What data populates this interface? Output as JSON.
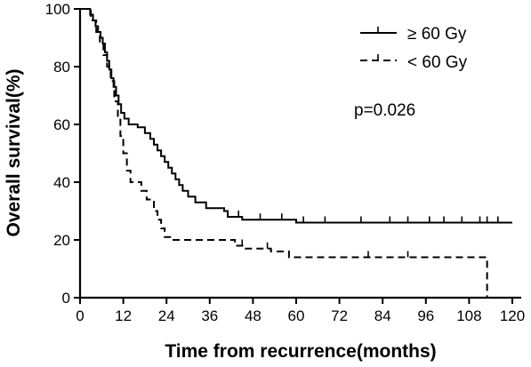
{
  "chart_data": {
    "type": "line",
    "title": "",
    "xlabel": "Time from recurrence(months)",
    "ylabel": "Overall survival(%)",
    "xlim": [
      0,
      120
    ],
    "ylim": [
      0,
      100
    ],
    "x_ticks": [
      "0",
      "12",
      "24",
      "36",
      "48",
      "60",
      "72",
      "84",
      "96",
      "108",
      "120"
    ],
    "y_ticks": [
      "0",
      "20",
      "40",
      "60",
      "80",
      "100"
    ],
    "grid": false,
    "legend_position": "top-right",
    "annotation": "p=0.026",
    "series": [
      {
        "name": "≥ 60 Gy",
        "line_style": "solid",
        "steps": [
          [
            0,
            100
          ],
          [
            2,
            100
          ],
          [
            2.8,
            98
          ],
          [
            3.6,
            96
          ],
          [
            4.3,
            94
          ],
          [
            5,
            92
          ],
          [
            5.7,
            90
          ],
          [
            6.3,
            88
          ],
          [
            6.9,
            85
          ],
          [
            7.5,
            82
          ],
          [
            8.1,
            79
          ],
          [
            8.7,
            76
          ],
          [
            9.3,
            73
          ],
          [
            10,
            70
          ],
          [
            10.7,
            67
          ],
          [
            11.4,
            64
          ],
          [
            12.3,
            62
          ],
          [
            13.5,
            60
          ],
          [
            16,
            59
          ],
          [
            18,
            57
          ],
          [
            19.5,
            55
          ],
          [
            20.5,
            53
          ],
          [
            21.5,
            51
          ],
          [
            22.5,
            49
          ],
          [
            23.5,
            47
          ],
          [
            24.5,
            45
          ],
          [
            25.5,
            43
          ],
          [
            26.5,
            41
          ],
          [
            27.5,
            39
          ],
          [
            28.5,
            37
          ],
          [
            30,
            35
          ],
          [
            32,
            33
          ],
          [
            35,
            31
          ],
          [
            40,
            30
          ],
          [
            41,
            28
          ],
          [
            45,
            27
          ],
          [
            60,
            26
          ],
          [
            120,
            26
          ]
        ],
        "censored_at": [
          44,
          50,
          56,
          62,
          68,
          78,
          86,
          91,
          97,
          101,
          106,
          111,
          113,
          116
        ]
      },
      {
        "name": "< 60 Gy",
        "line_style": "dashed",
        "steps": [
          [
            0,
            100
          ],
          [
            1.5,
            100
          ],
          [
            3,
            96
          ],
          [
            4.5,
            92
          ],
          [
            5.5,
            88
          ],
          [
            6.5,
            84
          ],
          [
            7.5,
            80
          ],
          [
            8.5,
            75
          ],
          [
            9.5,
            68
          ],
          [
            10.5,
            62
          ],
          [
            11.2,
            56
          ],
          [
            12,
            50
          ],
          [
            13,
            44
          ],
          [
            14,
            40
          ],
          [
            17,
            37
          ],
          [
            18.5,
            34
          ],
          [
            20.5,
            30
          ],
          [
            21.5,
            27
          ],
          [
            22.5,
            24
          ],
          [
            23.5,
            21
          ],
          [
            25,
            20
          ],
          [
            40,
            20
          ],
          [
            43,
            18
          ],
          [
            46,
            17
          ],
          [
            53,
            16
          ],
          [
            58,
            14
          ],
          [
            113,
            14
          ],
          [
            113,
            0
          ]
        ],
        "censored_at": [
          45,
          52,
          80,
          91
        ]
      }
    ]
  }
}
